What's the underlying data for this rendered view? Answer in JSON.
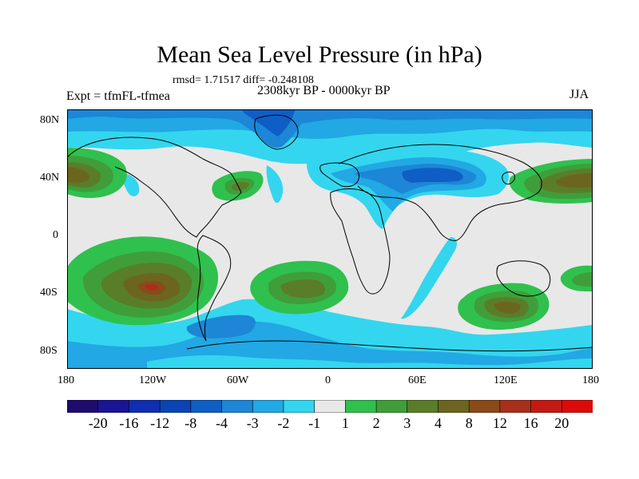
{
  "title": "Mean Sea Level Pressure (in hPa)",
  "stats_line": "rmsd= 1.71517 diff= -0.248108",
  "period": "2308kyr BP - 0000kyr BP",
  "experiment": "Expt = tfmFL-tfmea",
  "season": "JJA",
  "latitude_ticks": [
    "80N",
    "40N",
    "0",
    "40S",
    "80S"
  ],
  "longitude_ticks": [
    "180",
    "120W",
    "60W",
    "0",
    "60E",
    "120E",
    "180"
  ],
  "colorbar": {
    "labels": [
      "-20",
      "-16",
      "-12",
      "-8",
      "-4",
      "-3",
      "-2",
      "-1",
      "1",
      "2",
      "3",
      "4",
      "8",
      "12",
      "16",
      "20"
    ],
    "colors": [
      "#1f0b6e",
      "#1a1496",
      "#0f2eb0",
      "#0a44b5",
      "#0f5ec6",
      "#1d86d6",
      "#22a8e4",
      "#33d6ee",
      "#e8e8e8",
      "#30c04e",
      "#3f9e3a",
      "#5a7d2a",
      "#6b6520",
      "#8a4a1c",
      "#a8301a",
      "#c41a14",
      "#dd0a0a"
    ]
  },
  "colors": {
    "neutral": "#e8e8e8",
    "low1": "#33d6ee",
    "low2": "#22a8e4",
    "low3": "#1d86d6",
    "low4": "#0f5ec6",
    "high1": "#30c04e",
    "high2": "#3f9e3a",
    "high3": "#5a7d2a",
    "high4": "#6b6520",
    "high5": "#8a4a1c"
  }
}
